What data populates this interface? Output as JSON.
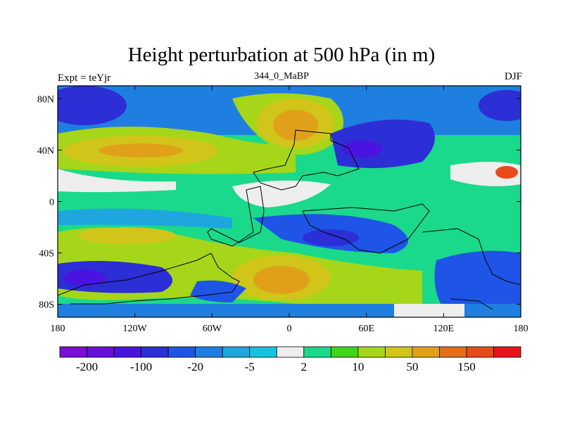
{
  "title": "Height perturbation at 500 hPa (in m)",
  "left_label": "Expt = teYjr",
  "center_label": "344_0_MaBP",
  "right_label": "DJF",
  "map": {
    "projection": "cylindrical-equidistant",
    "lon_range": [
      -180,
      180
    ],
    "lat_range": [
      -90,
      90
    ],
    "y_ticks": [
      {
        "value": 80,
        "label": "80N"
      },
      {
        "value": 40,
        "label": "40N"
      },
      {
        "value": 0,
        "label": "0"
      },
      {
        "value": -40,
        "label": "40S"
      },
      {
        "value": -80,
        "label": "80S"
      }
    ],
    "x_ticks": [
      {
        "value": -180,
        "label": "180"
      },
      {
        "value": -120,
        "label": "120W"
      },
      {
        "value": -60,
        "label": "60W"
      },
      {
        "value": 0,
        "label": "0"
      },
      {
        "value": 60,
        "label": "60E"
      },
      {
        "value": 120,
        "label": "120E"
      },
      {
        "value": 180,
        "label": "180"
      }
    ]
  },
  "colorbar": {
    "colors": [
      "#7a0fd6",
      "#6710d9",
      "#4a14e0",
      "#2c2ed6",
      "#1f55e6",
      "#1f7fe0",
      "#1ea6de",
      "#18c0e0",
      "#eeeeee",
      "#1ad98a",
      "#3fd61a",
      "#a6d61a",
      "#d2c51a",
      "#e0a01a",
      "#e36e1a",
      "#e84a1a",
      "#e8141a"
    ],
    "labels": [
      {
        "value": "-200",
        "after_box": 1
      },
      {
        "value": "-100",
        "after_box": 3
      },
      {
        "value": "-20",
        "after_box": 5
      },
      {
        "value": "-5",
        "after_box": 7
      },
      {
        "value": "2",
        "after_box": 9
      },
      {
        "value": "10",
        "after_box": 11
      },
      {
        "value": "50",
        "after_box": 13
      },
      {
        "value": "150",
        "after_box": 15
      }
    ]
  },
  "chart_data": {
    "type": "heatmap",
    "title": "Height perturbation at 500 hPa (in m)",
    "variable": "500 hPa geopotential height perturbation",
    "units": "m",
    "season": "DJF",
    "contour_levels": [
      -200,
      -100,
      -20,
      -5,
      2,
      10,
      50,
      150
    ],
    "features": [
      {
        "region": "central Asia / Arctic (0-40E, 50-80N)",
        "value_range": [
          50,
          150
        ]
      },
      {
        "region": "North Pacific (150W-90W, 30-50N)",
        "value_range": [
          50,
          100
        ]
      },
      {
        "region": "East Asia (30E-90E, 30-50N)",
        "value_range": [
          -200,
          -100
        ]
      },
      {
        "region": "North Atlantic high lat (180-120W, 60-80N)",
        "value_range": [
          -100,
          -20
        ]
      },
      {
        "region": "South Atlantic / Southern Ocean (10W-40E, 50-75S)",
        "value_range": [
          50,
          100
        ]
      },
      {
        "region": "Southern Pacific (180-150W, 60-70S)",
        "value_range": [
          -200,
          -100
        ]
      }
    ]
  }
}
